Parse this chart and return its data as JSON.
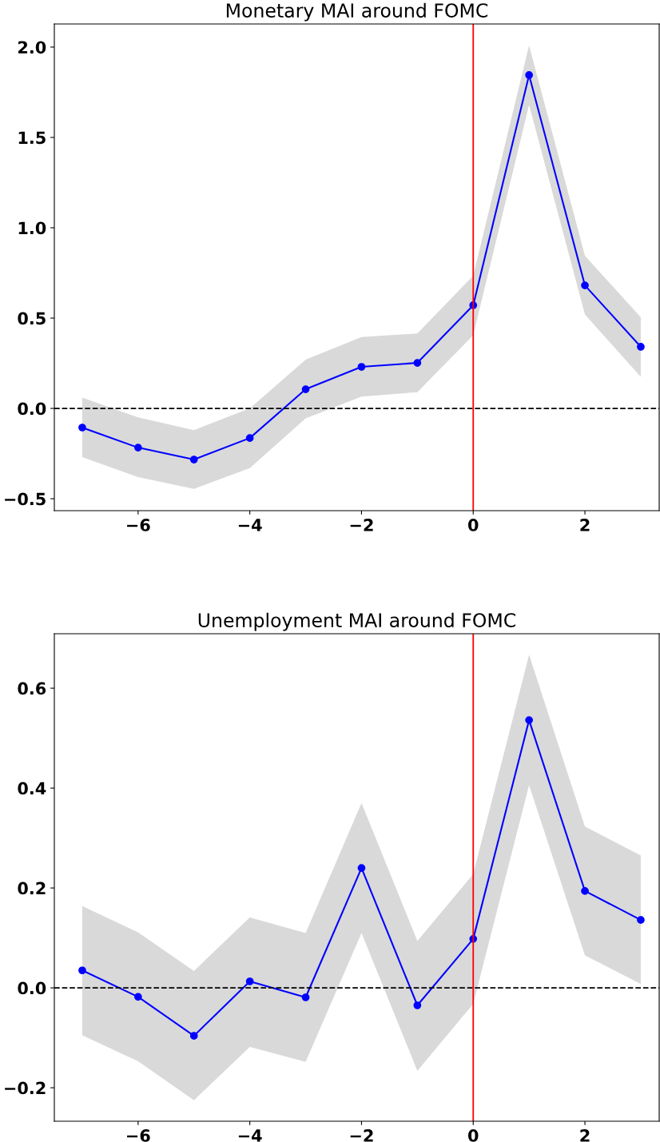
{
  "chart_data": [
    {
      "type": "line",
      "title": "Monetary MAI around FOMC",
      "x": [
        -7,
        -6,
        -5,
        -4,
        -3,
        -2,
        -1,
        0,
        1,
        2,
        3
      ],
      "series": [
        {
          "color": "#0000ff",
          "values": [
            -0.106,
            -0.217,
            -0.283,
            -0.164,
            0.106,
            0.23,
            0.252,
            0.571,
            1.845,
            0.681,
            0.341
          ],
          "upper": [
            0.06,
            -0.05,
            -0.12,
            0.0,
            0.27,
            0.395,
            0.415,
            0.735,
            2.01,
            0.845,
            0.505
          ],
          "lower": [
            -0.27,
            -0.38,
            -0.445,
            -0.33,
            -0.055,
            0.065,
            0.09,
            0.405,
            1.68,
            0.52,
            0.175
          ]
        }
      ],
      "xlim": [
        -7.5,
        3.33
      ],
      "xticks": [
        {
          "value": -6,
          "label": "−6"
        },
        {
          "value": -4,
          "label": "−4"
        },
        {
          "value": -2,
          "label": "−2"
        },
        0,
        2
      ],
      "ylim": [
        -0.566,
        2.128
      ],
      "yticks": [
        {
          "value": -0.5,
          "label": "−0.5"
        },
        {
          "value": 0,
          "label": "0.0"
        },
        0.5,
        {
          "value": 1,
          "label": "1.0"
        },
        1.5,
        {
          "value": 2,
          "label": "2.0"
        }
      ],
      "ref_lines": [
        {
          "axis": "y",
          "value": 0,
          "color": "#000000",
          "line_style": "dashed"
        },
        {
          "axis": "x",
          "value": 0,
          "color": "#ff0000",
          "line_style": "solid"
        }
      ],
      "marker": "circle",
      "line_style": "solid",
      "grid": false,
      "legend": false
    },
    {
      "type": "line",
      "title": "Unemployment MAI around FOMC",
      "x": [
        -7,
        -6,
        -5,
        -4,
        -3,
        -2,
        -1,
        0,
        1,
        2,
        3
      ],
      "series": [
        {
          "color": "#0000ff",
          "values": [
            0.035,
            -0.018,
            -0.096,
            0.013,
            -0.019,
            0.24,
            -0.035,
            0.098,
            0.536,
            0.194,
            0.136
          ],
          "upper": [
            0.164,
            0.111,
            0.034,
            0.141,
            0.11,
            0.37,
            0.094,
            0.228,
            0.667,
            0.323,
            0.265
          ],
          "lower": [
            -0.095,
            -0.147,
            -0.225,
            -0.118,
            -0.148,
            0.11,
            -0.166,
            -0.032,
            0.406,
            0.065,
            0.008
          ]
        }
      ],
      "xlim": [
        -7.5,
        3.33
      ],
      "xticks": [
        {
          "value": -6,
          "label": "−6"
        },
        {
          "value": -4,
          "label": "−4"
        },
        {
          "value": -2,
          "label": "−2"
        },
        0,
        2
      ],
      "ylim": [
        -0.267,
        0.709
      ],
      "yticks": [
        {
          "value": -0.2,
          "label": "−0.2"
        },
        {
          "value": 0,
          "label": "0.0"
        },
        0.2,
        0.4,
        0.6
      ],
      "ref_lines": [
        {
          "axis": "y",
          "value": 0,
          "color": "#000000",
          "line_style": "dashed"
        },
        {
          "axis": "x",
          "value": 0,
          "color": "#ff0000",
          "line_style": "solid"
        }
      ],
      "marker": "circle",
      "line_style": "solid",
      "grid": false,
      "legend": false
    }
  ]
}
